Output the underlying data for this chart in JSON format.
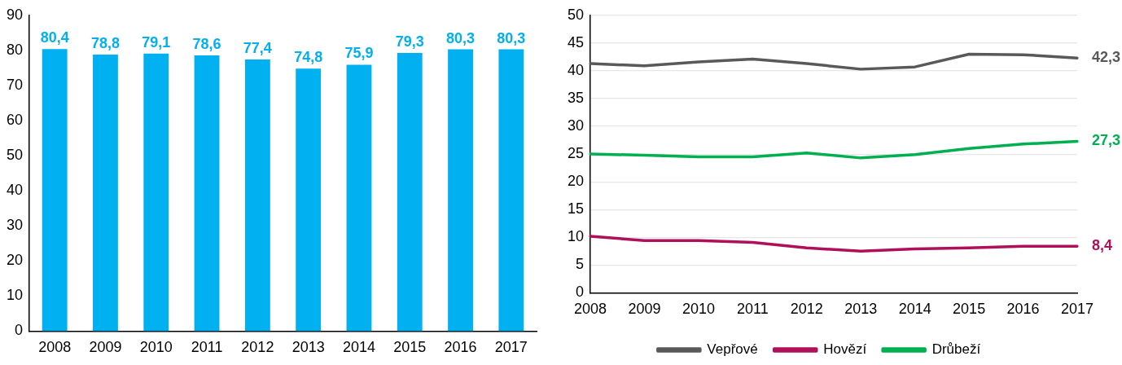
{
  "chart_data": [
    {
      "type": "bar",
      "categories": [
        "2008",
        "2009",
        "2010",
        "2011",
        "2012",
        "2013",
        "2014",
        "2015",
        "2016",
        "2017"
      ],
      "series": [
        {
          "color": "#00b0f0",
          "values": [
            80.4,
            78.8,
            79.1,
            78.6,
            77.4,
            74.8,
            75.9,
            79.3,
            80.3,
            80.3
          ],
          "value_labels": [
            "80,4",
            "78,8",
            "79,1",
            "78,6",
            "77,4",
            "74,8",
            "75,9",
            "79,3",
            "80,3",
            "80,3"
          ]
        }
      ],
      "ylim": [
        0,
        90
      ],
      "yticks": [
        0,
        10,
        20,
        30,
        40,
        50,
        60,
        70,
        80,
        90
      ],
      "grid": false,
      "legend": false
    },
    {
      "type": "line",
      "categories": [
        "2008",
        "2009",
        "2010",
        "2011",
        "2012",
        "2013",
        "2014",
        "2015",
        "2016",
        "2017"
      ],
      "series": [
        {
          "name": "Vepřové",
          "color": "#595959",
          "values": [
            41.3,
            40.9,
            41.6,
            42.1,
            41.3,
            40.3,
            40.7,
            43.0,
            42.9,
            42.3
          ],
          "value_labels": [
            null,
            null,
            null,
            null,
            null,
            null,
            null,
            null,
            null,
            "42,3"
          ]
        },
        {
          "name": "Hovězí",
          "color": "#b0105a",
          "values": [
            10.2,
            9.4,
            9.4,
            9.1,
            8.1,
            7.5,
            7.9,
            8.1,
            8.4,
            8.4
          ],
          "value_labels": [
            null,
            null,
            null,
            null,
            null,
            null,
            null,
            null,
            null,
            "8,4"
          ]
        },
        {
          "name": "Drůbeží",
          "color": "#00b050",
          "values": [
            25.0,
            24.8,
            24.5,
            24.5,
            25.2,
            24.3,
            24.9,
            26.0,
            26.8,
            27.3
          ],
          "value_labels": [
            null,
            null,
            null,
            null,
            null,
            null,
            null,
            null,
            null,
            "27,3"
          ]
        }
      ],
      "ylim": [
        0,
        50
      ],
      "yticks": [
        0,
        5,
        10,
        15,
        20,
        25,
        30,
        35,
        40,
        45,
        50
      ],
      "grid": "y",
      "legend": "bottom",
      "marker": "none",
      "line_style": "solid"
    }
  ]
}
